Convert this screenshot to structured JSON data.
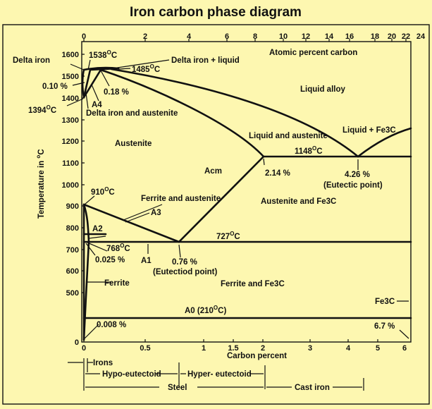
{
  "title": "Iron carbon phase diagram",
  "colors": {
    "background": "#fdf7b0",
    "ink": "#111111"
  },
  "top_axis": {
    "label": "Atomic percent carbon",
    "ticks": [
      "0",
      "2",
      "4",
      "6",
      "8",
      "10",
      "12",
      "14",
      "16",
      "18",
      "20",
      "22",
      "24"
    ]
  },
  "left_axis": {
    "label_main": "Temperature in",
    "label_sup": "o",
    "label_unit": "C",
    "ticks": [
      "1600",
      "1500",
      "1400",
      "1300",
      "1200",
      "1100",
      "1000",
      "900",
      "800",
      "700",
      "600",
      "500",
      "0"
    ]
  },
  "bottom_axis": {
    "label": "Carbon percent",
    "ticks": [
      "0",
      "0.5",
      "1",
      "1.5",
      "2",
      "3",
      "4",
      "5",
      "6"
    ]
  },
  "labels": {
    "t1538_num": "1538",
    "t1538_sup": "O",
    "t1538_unit": "C",
    "delta_iron": "Delta iron",
    "delta_liquid": "Delta iron +  liquid",
    "t1485_num": "1485",
    "t1485_sup": "O",
    "t1485_unit": "C",
    "p010": "0.10 %",
    "p018": "0.18 %",
    "a4": "A4",
    "t1394_num": "1394",
    "t1394_sup": "O",
    "t1394_unit": "C",
    "delta_austenite": "Delta iron and austenite",
    "liquid_alloy": "Liquid alloy",
    "austenite": "Austenite",
    "liquid_austenite": "Liquid and austenite",
    "liquid_fe3c": "Liquid + Fe3C",
    "t1148_num": "1148",
    "t1148_sup": "O",
    "t1148_unit": "C",
    "acm": "Acm",
    "p214": "2.14 %",
    "p426": "4.26 %",
    "eutectic": "(Eutectic point)",
    "t910_num": "910",
    "t910_sup": "O",
    "t910_unit": "C",
    "ferrite_austenite": "Ferrite and austenite",
    "a3": "A3",
    "austenite_fe3c": "Austenite and Fe3C",
    "a2": "A2",
    "t727_num": "727",
    "t727_sup": "O",
    "t727_unit": "C",
    "t768_num": "768",
    "t768_sup": "O",
    "t768_unit": "C",
    "p0025": "0.025 %",
    "a1": "A1",
    "p076": "0.76 %",
    "eutectoid": "(Eutectiod point)",
    "ferrite": "Ferrite",
    "ferrite_fe3c": "Ferrite and Fe3C",
    "fe3c": "Fe3C",
    "a0_main": "A0 (210",
    "a0_sup": "O",
    "a0_end": "C)",
    "p0008": "0.008 %",
    "p67": "6.7 %"
  },
  "ranges": {
    "irons": "Irons",
    "hypo": "Hypo-eutectoid",
    "hyper": "Hyper- eutectoid",
    "steel": "Steel",
    "cast_iron": "Cast iron"
  }
}
